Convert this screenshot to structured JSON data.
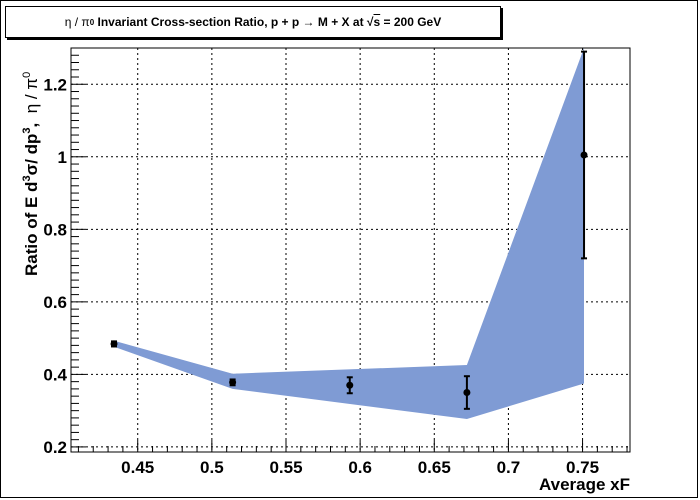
{
  "chart_data": {
    "type": "scatter",
    "title": {
      "prefix_greek": "η / π",
      "prefix_sup": "0",
      "main": " Invariant Cross-section Ratio, p + p → M + X at ",
      "sqrt_symbol": "√",
      "sqrt_arg": "s",
      "suffix": " = 200 GeV"
    },
    "xlabel": "Average xF",
    "ylabel": {
      "line1_parts": [
        "Ratio of E d",
        "3",
        "σ/ dp",
        "3",
        ",  "
      ],
      "line2": "η / π",
      "line2_sup": "0"
    },
    "xlim": [
      0.405,
      0.782
    ],
    "ylim": [
      0.186,
      1.3
    ],
    "x_ticks": [
      0.45,
      0.5,
      0.55,
      0.6,
      0.65,
      0.7,
      0.75
    ],
    "x_tick_labels": [
      "0.45",
      "0.5",
      "0.55",
      "0.6",
      "0.65",
      "0.7",
      "0.75"
    ],
    "y_ticks": [
      0.2,
      0.4,
      0.6,
      0.8,
      1.0,
      1.2
    ],
    "y_tick_labels": [
      "0.2",
      "0.4",
      "0.6",
      "0.8",
      "1",
      "1.2"
    ],
    "grid": true,
    "series": [
      {
        "points": [
          {
            "x": 0.434,
            "y": 0.484,
            "err": 0.007
          },
          {
            "x": 0.514,
            "y": 0.378,
            "err": 0.008
          },
          {
            "x": 0.593,
            "y": 0.37,
            "err": 0.022
          },
          {
            "x": 0.672,
            "y": 0.35,
            "err": 0.045
          },
          {
            "x": 0.751,
            "y": 1.005,
            "err": 0.285
          }
        ]
      }
    ],
    "band": {
      "color": "#7f9bd4",
      "upper": [
        [
          0.434,
          0.493
        ],
        [
          0.514,
          0.402
        ],
        [
          0.672,
          0.426
        ],
        [
          0.751,
          1.42
        ]
      ],
      "lower": [
        [
          0.434,
          0.476
        ],
        [
          0.514,
          0.36
        ],
        [
          0.672,
          0.277
        ],
        [
          0.751,
          0.375
        ]
      ]
    }
  }
}
